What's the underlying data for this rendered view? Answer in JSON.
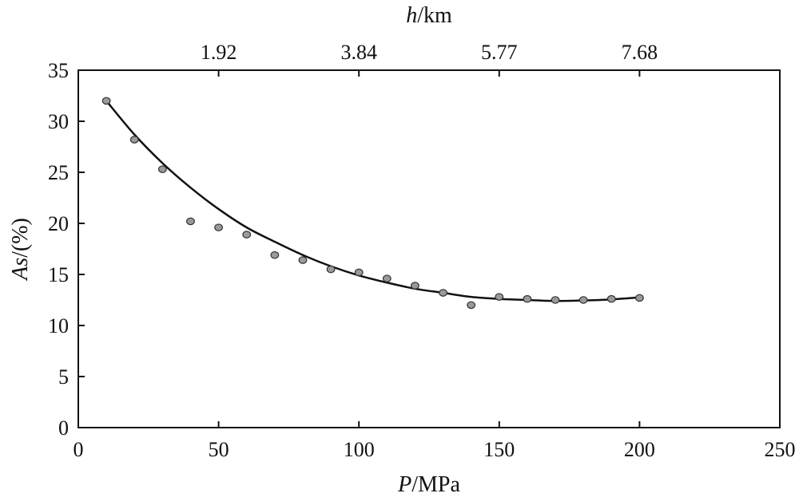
{
  "chart_data": {
    "type": "scatter",
    "xlabel_italic": "P",
    "xlabel_rest": "/MPa",
    "ylabel_italic": "As",
    "ylabel_rest": "/(%)",
    "top_label_italic": "h",
    "top_label_rest": "/km",
    "xlim": [
      0,
      250
    ],
    "ylim": [
      0,
      35
    ],
    "x_ticks": [
      0,
      50,
      100,
      150,
      200,
      250
    ],
    "y_ticks": [
      0,
      5,
      10,
      15,
      20,
      25,
      30,
      35
    ],
    "top_ticks": [
      {
        "p": 50,
        "label": "1.92"
      },
      {
        "p": 100,
        "label": "3.84"
      },
      {
        "p": 150,
        "label": "5.77"
      },
      {
        "p": 200,
        "label": "7.68"
      }
    ],
    "points": [
      [
        10,
        32.0
      ],
      [
        20,
        28.2
      ],
      [
        30,
        25.3
      ],
      [
        40,
        20.2
      ],
      [
        50,
        19.6
      ],
      [
        60,
        18.9
      ],
      [
        70,
        16.9
      ],
      [
        80,
        16.4
      ],
      [
        90,
        15.5
      ],
      [
        100,
        15.2
      ],
      [
        110,
        14.6
      ],
      [
        120,
        13.9
      ],
      [
        130,
        13.2
      ],
      [
        140,
        12.0
      ],
      [
        150,
        12.8
      ],
      [
        160,
        12.6
      ],
      [
        170,
        12.5
      ],
      [
        180,
        12.5
      ],
      [
        190,
        12.6
      ],
      [
        200,
        12.7
      ]
    ],
    "fit_curve": [
      [
        10,
        32.0
      ],
      [
        20,
        28.7
      ],
      [
        30,
        25.9
      ],
      [
        40,
        23.5
      ],
      [
        50,
        21.4
      ],
      [
        60,
        19.6
      ],
      [
        70,
        18.2
      ],
      [
        80,
        16.9
      ],
      [
        90,
        15.8
      ],
      [
        100,
        14.9
      ],
      [
        110,
        14.2
      ],
      [
        120,
        13.6
      ],
      [
        130,
        13.2
      ],
      [
        140,
        12.8
      ],
      [
        150,
        12.6
      ],
      [
        160,
        12.5
      ],
      [
        170,
        12.4
      ],
      [
        180,
        12.45
      ],
      [
        190,
        12.55
      ],
      [
        200,
        12.75
      ]
    ],
    "grid": false,
    "legend": "none",
    "colors": {
      "point_fill": "#9a9a9a",
      "point_stroke": "#333333",
      "line": "#111111"
    }
  }
}
